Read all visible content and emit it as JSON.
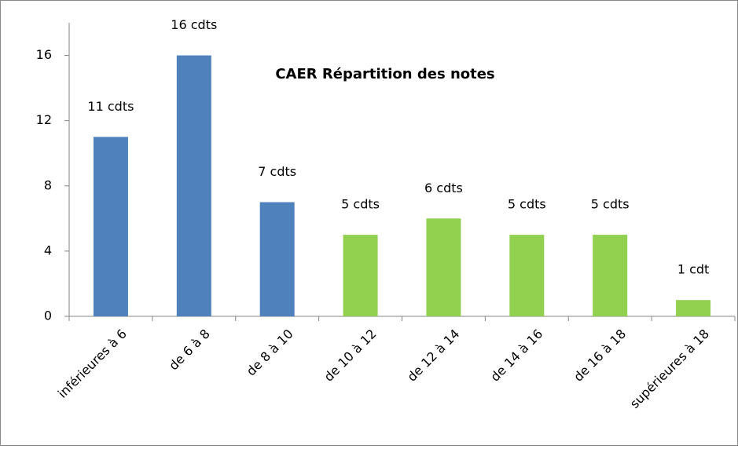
{
  "chart_data": {
    "type": "bar",
    "title": "CAER Répartition des notes",
    "categories": [
      "inférieures à 6",
      "de 6 à  8",
      "de 8 à 10",
      "de 10 à 12",
      "de 12 à 14",
      "de 14 à 16",
      "de 16 à 18",
      "supérieures à 18"
    ],
    "values": [
      11,
      16,
      7,
      5,
      6,
      5,
      5,
      1
    ],
    "value_labels": [
      "11 cdts",
      "16 cdts",
      "7 cdts",
      "5 cdts",
      "6 cdts",
      "5 cdts",
      "5 cdts",
      "1 cdt"
    ],
    "colors": [
      "#4f81bd",
      "#4f81bd",
      "#4f81bd",
      "#92d050",
      "#92d050",
      "#92d050",
      "#92d050",
      "#92d050"
    ],
    "ylim": [
      0,
      18
    ],
    "yticks": [
      0,
      4,
      8,
      12,
      16
    ],
    "grid": false
  }
}
